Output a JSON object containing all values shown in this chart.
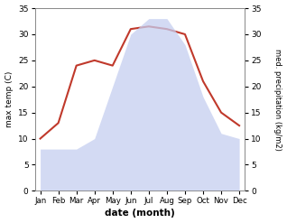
{
  "months": [
    "Jan",
    "Feb",
    "Mar",
    "Apr",
    "May",
    "Jun",
    "Jul",
    "Aug",
    "Sep",
    "Oct",
    "Nov",
    "Dec"
  ],
  "temperature": [
    10,
    13,
    24,
    25,
    24,
    31,
    31.5,
    31,
    30,
    21,
    15,
    12.5
  ],
  "precipitation": [
    8,
    8,
    8,
    10,
    20,
    30,
    33,
    33,
    28,
    18,
    11,
    10
  ],
  "temp_color": "#c0392b",
  "precip_color": "#c5cef0",
  "precip_fill_alpha": 0.75,
  "ylim_left": [
    0,
    35
  ],
  "ylim_right": [
    0,
    35
  ],
  "yticks": [
    0,
    5,
    10,
    15,
    20,
    25,
    30,
    35
  ],
  "xlabel": "date (month)",
  "ylabel_left": "max temp (C)",
  "ylabel_right": "med. precipitation (kg/m2)",
  "bg_color": "#ffffff"
}
